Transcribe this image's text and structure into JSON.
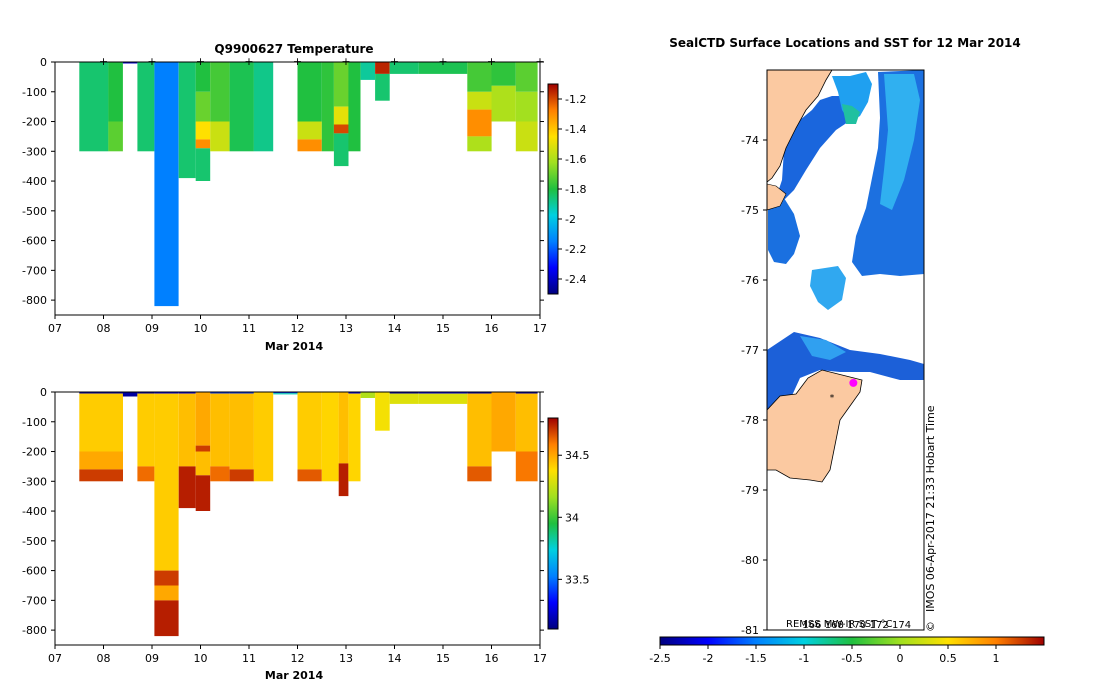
{
  "chart_data": [
    {
      "type": "heatmap",
      "title": "Q9900627  Temperature",
      "xlabel": "Mar 2014",
      "x_ticks": [
        "07",
        "08",
        "09",
        "10",
        "11",
        "12",
        "13",
        "14",
        "15",
        "16",
        "17"
      ],
      "xlim": [
        7,
        17
      ],
      "ylim": [
        -850,
        0
      ],
      "y_ticks": [
        "0",
        "-100",
        "-200",
        "-300",
        "-400",
        "-500",
        "-600",
        "-700",
        "-800"
      ],
      "y_tick_values": [
        0,
        -100,
        -200,
        -300,
        -400,
        -500,
        -600,
        -700,
        -800
      ],
      "profile_markers_day": [
        8,
        9,
        10,
        11,
        12,
        13,
        14,
        15,
        16,
        17
      ],
      "colorbar": {
        "min": -2.5,
        "max": -1.1,
        "tick_values": [
          -1.2,
          -1.4,
          -1.6,
          -1.8,
          -2,
          -2.2,
          -2.4
        ],
        "tick_labels": [
          "-1.2",
          "-1.4",
          "-1.6",
          "-1.8",
          "-2",
          "-2.2",
          "-2.4"
        ]
      },
      "profiles": [
        {
          "t0": 7.5,
          "t1": 8.1,
          "depth": 300,
          "segments": [
            [
              0,
              300,
              -1.85
            ]
          ]
        },
        {
          "t0": 8.1,
          "t1": 8.4,
          "depth": 300,
          "segments": [
            [
              0,
              200,
              -1.8
            ],
            [
              200,
              300,
              -1.72
            ]
          ]
        },
        {
          "t0": 8.4,
          "t1": 8.7,
          "depth": 5,
          "segments": [
            [
              0,
              5,
              -2.4
            ]
          ]
        },
        {
          "t0": 8.7,
          "t1": 9.05,
          "depth": 300,
          "segments": [
            [
              0,
              300,
              -1.85
            ]
          ]
        },
        {
          "t0": 9.05,
          "t1": 9.55,
          "depth": 820,
          "segments": [
            [
              0,
              820,
              -2.15
            ]
          ]
        },
        {
          "t0": 9.55,
          "t1": 9.9,
          "depth": 390,
          "segments": [
            [
              0,
              390,
              -1.85
            ]
          ]
        },
        {
          "t0": 9.9,
          "t1": 10.2,
          "depth": 400,
          "segments": [
            [
              0,
              100,
              -1.8
            ],
            [
              100,
              200,
              -1.7
            ],
            [
              200,
              260,
              -1.45
            ],
            [
              260,
              290,
              -1.3
            ],
            [
              290,
              400,
              -1.85
            ]
          ]
        },
        {
          "t0": 10.2,
          "t1": 10.6,
          "depth": 300,
          "segments": [
            [
              0,
              200,
              -1.75
            ],
            [
              200,
              300,
              -1.55
            ]
          ]
        },
        {
          "t0": 10.6,
          "t1": 11.1,
          "depth": 300,
          "segments": [
            [
              0,
              300,
              -1.82
            ]
          ]
        },
        {
          "t0": 11.1,
          "t1": 11.5,
          "depth": 300,
          "segments": [
            [
              0,
              300,
              -1.88
            ]
          ]
        },
        {
          "t0": 12.0,
          "t1": 12.5,
          "depth": 300,
          "segments": [
            [
              0,
              200,
              -1.8
            ],
            [
              200,
              260,
              -1.55
            ],
            [
              260,
              300,
              -1.3
            ]
          ]
        },
        {
          "t0": 12.5,
          "t1": 12.75,
          "depth": 300,
          "segments": [
            [
              0,
              300,
              -1.78
            ]
          ]
        },
        {
          "t0": 12.75,
          "t1": 13.05,
          "depth": 350,
          "segments": [
            [
              0,
              150,
              -1.7
            ],
            [
              150,
              210,
              -1.5
            ],
            [
              210,
              240,
              -1.2
            ],
            [
              240,
              350,
              -1.85
            ]
          ]
        },
        {
          "t0": 13.05,
          "t1": 13.3,
          "depth": 300,
          "segments": [
            [
              0,
              300,
              -1.8
            ]
          ]
        },
        {
          "t0": 13.3,
          "t1": 13.6,
          "depth": 60,
          "segments": [
            [
              0,
              60,
              -1.9
            ]
          ]
        },
        {
          "t0": 13.6,
          "t1": 13.9,
          "depth": 130,
          "segments": [
            [
              0,
              40,
              -1.15
            ],
            [
              40,
              130,
              -1.85
            ]
          ]
        },
        {
          "t0": 13.9,
          "t1": 14.5,
          "depth": 40,
          "segments": [
            [
              0,
              40,
              -1.85
            ]
          ]
        },
        {
          "t0": 14.5,
          "t1": 15.5,
          "depth": 40,
          "segments": [
            [
              0,
              40,
              -1.82
            ]
          ]
        },
        {
          "t0": 15.5,
          "t1": 16.0,
          "depth": 300,
          "segments": [
            [
              0,
              100,
              -1.75
            ],
            [
              100,
              160,
              -1.55
            ],
            [
              160,
              250,
              -1.3
            ],
            [
              250,
              300,
              -1.6
            ]
          ]
        },
        {
          "t0": 16.0,
          "t1": 16.5,
          "depth": 200,
          "segments": [
            [
              0,
              80,
              -1.78
            ],
            [
              80,
              200,
              -1.6
            ]
          ]
        },
        {
          "t0": 16.5,
          "t1": 16.95,
          "depth": 300,
          "segments": [
            [
              0,
              100,
              -1.72
            ],
            [
              100,
              200,
              -1.62
            ],
            [
              200,
              300,
              -1.55
            ]
          ]
        }
      ]
    },
    {
      "type": "heatmap",
      "title": "",
      "xlabel": "Mar 2014",
      "x_ticks": [
        "07",
        "08",
        "09",
        "10",
        "11",
        "12",
        "13",
        "14",
        "15",
        "16",
        "17"
      ],
      "xlim": [
        7,
        17
      ],
      "ylim": [
        -850,
        0
      ],
      "y_ticks": [
        "0",
        "-100",
        "-200",
        "-300",
        "-400",
        "-500",
        "-600",
        "-700",
        "-800"
      ],
      "y_tick_values": [
        0,
        -100,
        -200,
        -300,
        -400,
        -500,
        -600,
        -700,
        -800
      ],
      "colorbar": {
        "min": 33.1,
        "max": 34.8,
        "tick_values": [
          34.5,
          34,
          33.5
        ],
        "tick_labels": [
          "34.5",
          "34",
          "33.5"
        ]
      },
      "profiles": [
        {
          "t0": 7.5,
          "t1": 8.4,
          "depth": 300,
          "segments": [
            [
              0,
              5,
              33.2
            ],
            [
              5,
              200,
              34.42
            ],
            [
              200,
              260,
              34.5
            ],
            [
              260,
              300,
              34.7
            ]
          ]
        },
        {
          "t0": 8.4,
          "t1": 8.7,
          "depth": 15,
          "segments": [
            [
              0,
              15,
              33.15
            ]
          ]
        },
        {
          "t0": 8.7,
          "t1": 9.05,
          "depth": 300,
          "segments": [
            [
              0,
              5,
              33.2
            ],
            [
              5,
              250,
              34.42
            ],
            [
              250,
              300,
              34.62
            ]
          ]
        },
        {
          "t0": 9.05,
          "t1": 9.55,
          "depth": 820,
          "segments": [
            [
              0,
              5,
              33.3
            ],
            [
              5,
              600,
              34.42
            ],
            [
              600,
              650,
              34.7
            ],
            [
              650,
              700,
              34.5
            ],
            [
              700,
              820,
              34.75
            ]
          ]
        },
        {
          "t0": 9.55,
          "t1": 9.9,
          "depth": 390,
          "segments": [
            [
              0,
              5,
              33.3
            ],
            [
              5,
              250,
              34.45
            ],
            [
              250,
              390,
              34.75
            ]
          ]
        },
        {
          "t0": 9.9,
          "t1": 10.2,
          "depth": 400,
          "segments": [
            [
              0,
              180,
              34.5
            ],
            [
              180,
              200,
              34.7
            ],
            [
              200,
              280,
              34.45
            ],
            [
              280,
              400,
              34.75
            ]
          ]
        },
        {
          "t0": 10.2,
          "t1": 10.6,
          "depth": 300,
          "segments": [
            [
              0,
              5,
              33.4
            ],
            [
              5,
              250,
              34.45
            ],
            [
              250,
              300,
              34.62
            ]
          ]
        },
        {
          "t0": 10.6,
          "t1": 11.1,
          "depth": 300,
          "segments": [
            [
              0,
              5,
              33.4
            ],
            [
              5,
              260,
              34.45
            ],
            [
              260,
              300,
              34.7
            ]
          ]
        },
        {
          "t0": 11.1,
          "t1": 11.5,
          "depth": 300,
          "segments": [
            [
              0,
              300,
              34.42
            ]
          ]
        },
        {
          "t0": 11.5,
          "t1": 12.0,
          "depth": 8,
          "segments": [
            [
              0,
              4,
              33.4
            ],
            [
              4,
              8,
              33.8
            ]
          ]
        },
        {
          "t0": 12.0,
          "t1": 12.5,
          "depth": 300,
          "segments": [
            [
              0,
              260,
              34.42
            ],
            [
              260,
              300,
              34.65
            ]
          ]
        },
        {
          "t0": 12.5,
          "t1": 12.85,
          "depth": 300,
          "segments": [
            [
              0,
              300,
              34.4
            ]
          ]
        },
        {
          "t0": 12.85,
          "t1": 13.05,
          "depth": 350,
          "segments": [
            [
              0,
              240,
              34.45
            ],
            [
              240,
              350,
              34.75
            ]
          ]
        },
        {
          "t0": 13.05,
          "t1": 13.3,
          "depth": 300,
          "segments": [
            [
              0,
              5,
              33.3
            ],
            [
              5,
              300,
              34.4
            ]
          ]
        },
        {
          "t0": 13.3,
          "t1": 13.6,
          "depth": 20,
          "segments": [
            [
              0,
              20,
              34.2
            ]
          ]
        },
        {
          "t0": 13.6,
          "t1": 13.9,
          "depth": 130,
          "segments": [
            [
              0,
              130,
              34.35
            ]
          ]
        },
        {
          "t0": 13.9,
          "t1": 14.5,
          "depth": 40,
          "segments": [
            [
              0,
              5,
              33.2
            ],
            [
              5,
              40,
              34.3
            ]
          ]
        },
        {
          "t0": 14.5,
          "t1": 15.5,
          "depth": 40,
          "segments": [
            [
              0,
              5,
              33.3
            ],
            [
              5,
              40,
              34.3
            ]
          ]
        },
        {
          "t0": 15.5,
          "t1": 16.0,
          "depth": 300,
          "segments": [
            [
              0,
              5,
              33.2
            ],
            [
              5,
              250,
              34.45
            ],
            [
              250,
              300,
              34.65
            ]
          ]
        },
        {
          "t0": 16.0,
          "t1": 16.5,
          "depth": 200,
          "segments": [
            [
              0,
              200,
              34.5
            ]
          ]
        },
        {
          "t0": 16.5,
          "t1": 16.95,
          "depth": 300,
          "segments": [
            [
              0,
              5,
              33.2
            ],
            [
              5,
              200,
              34.45
            ],
            [
              200,
              300,
              34.6
            ]
          ]
        }
      ]
    },
    {
      "type": "map",
      "title": "SealCTD Surface Locations and SST for 12 Mar 2014",
      "lat_ticks": [
        "-74",
        "-75",
        "-76",
        "-77",
        "-78",
        "-79",
        "-80",
        "-81"
      ],
      "lat_tick_values": [
        -74,
        -75,
        -76,
        -77,
        -78,
        -79,
        -80,
        -81
      ],
      "lat_range": [
        -81,
        -73
      ],
      "lon_ticks": [
        "166",
        "168",
        "170",
        "172",
        "174"
      ],
      "lon_tick_values": [
        166,
        168,
        170,
        172,
        174
      ],
      "lon_range": [
        162,
        176
      ],
      "sst_label": "REMSS MW-IR SST °C",
      "timestamp": "IMOS 06-Apr-2017 21:33 Hobart Time",
      "copyright": "©",
      "land_color": "#FBC9A1",
      "seal_position": {
        "lon": 169.7,
        "lat": -77.47
      },
      "track_position": {
        "lon": 167.8,
        "lat": -77.68
      },
      "colorbar": {
        "min": -2.5,
        "max": 1.5,
        "tick_values": [
          -2.5,
          -2,
          -1.5,
          -1,
          -0.5,
          0,
          0.5,
          1
        ],
        "tick_labels": [
          "-2.5",
          "-2",
          "-1.5",
          "-1",
          "-0.5",
          "0",
          "0.5",
          "1"
        ]
      }
    }
  ]
}
